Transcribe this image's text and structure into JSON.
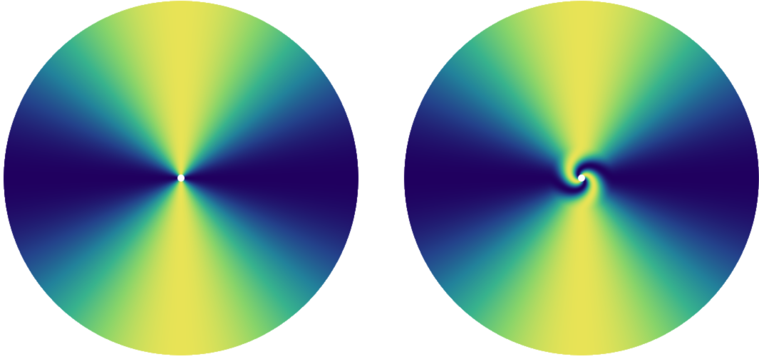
{
  "figure": {
    "panel_count": 2,
    "colormap": {
      "name": "viridis",
      "stops": [
        "#20005f",
        "#23428b",
        "#22829b",
        "#38b38d",
        "#87d46a",
        "#e8e356"
      ]
    },
    "center_dot_color": "#ffffff",
    "panels": [
      {
        "name": "left-disk",
        "pattern": "angular-cos2",
        "description_free": true,
        "core_vortex": false
      },
      {
        "name": "right-disk",
        "pattern": "angular-cos2",
        "core_vortex": true,
        "core_twist_turns": 0.5
      }
    ]
  }
}
